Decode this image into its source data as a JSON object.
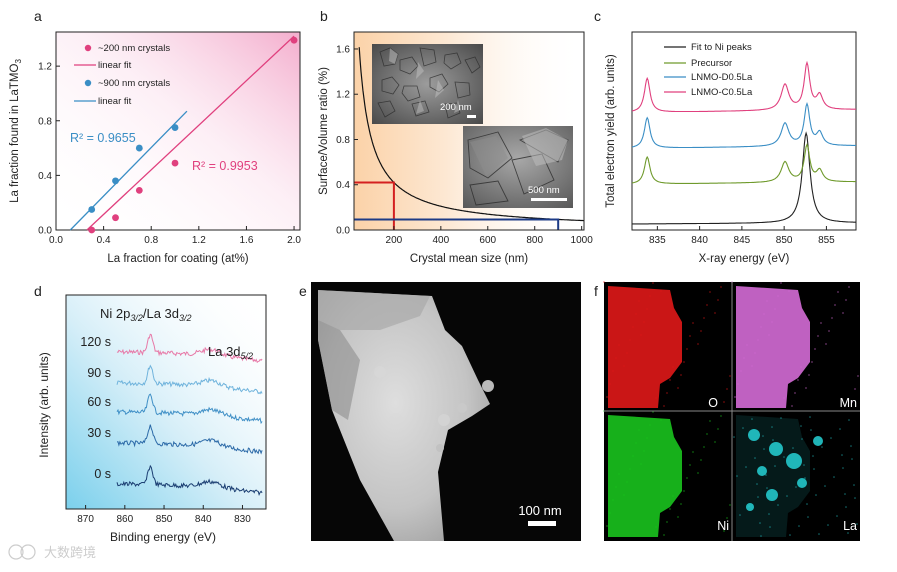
{
  "panels": {
    "a": {
      "letter": "a"
    },
    "b": {
      "letter": "b"
    },
    "c": {
      "letter": "c"
    },
    "d": {
      "letter": "d"
    },
    "e": {
      "letter": "e"
    },
    "f": {
      "letter": "f"
    }
  },
  "colors": {
    "pink": "#e0407e",
    "blue": "#3a8ec5",
    "navy": "#1d3b86",
    "red": "#d42020",
    "green": "#6f9a2c"
  },
  "chart_data": [
    {
      "panel": "a",
      "type": "scatter",
      "title": "",
      "xlabel": "La fraction for coating (at%)",
      "ylabel_prefix": "La fraction found in LaTMO",
      "ylabel_sub": "3",
      "xlim": [
        0,
        2.05
      ],
      "ylim": [
        0,
        1.45
      ],
      "xticks": [
        0.0,
        0.4,
        0.8,
        1.2,
        1.6,
        2.0
      ],
      "xtick_labels": [
        "0.0",
        "0.4",
        "0.8",
        "1.2",
        "1.6",
        "2.0"
      ],
      "yticks": [
        0.0,
        0.4,
        0.8,
        1.2
      ],
      "ytick_labels": [
        "0.0",
        "0.4",
        "0.8",
        "1.2"
      ],
      "series": [
        {
          "name": "~200 nm crystals",
          "color": "#e0407e",
          "x": [
            0.3,
            0.5,
            0.7,
            1.0,
            2.0
          ],
          "y": [
            0.0,
            0.09,
            0.29,
            0.49,
            1.39
          ],
          "fit_name": "linear fit",
          "fit": [
            [
              0.26,
              0.0
            ],
            [
              2.0,
              1.42
            ]
          ],
          "r2": "R² = 0.9953"
        },
        {
          "name": "~900 nm crystals",
          "color": "#3a8ec5",
          "x": [
            0.3,
            0.5,
            0.7,
            1.0
          ],
          "y": [
            0.15,
            0.36,
            0.6,
            0.75
          ],
          "fit_name": "linear fit",
          "fit": [
            [
              0.12,
              0.0
            ],
            [
              1.1,
              0.87
            ]
          ],
          "r2": "R² = 0.9655"
        }
      ]
    },
    {
      "panel": "b",
      "type": "line",
      "xlabel": "Crystal mean size (nm)",
      "ylabel": "Surface/Volume ratio (%)",
      "xlim": [
        30,
        1010
      ],
      "ylim": [
        0,
        1.75
      ],
      "xticks": [
        200,
        400,
        600,
        800,
        1000
      ],
      "yticks": [
        0.0,
        0.4,
        0.8,
        1.2,
        1.6
      ],
      "ytick_labels": [
        "0.0",
        "0.4",
        "0.8",
        "1.2",
        "1.6"
      ],
      "curve_constant": 84,
      "markers": [
        {
          "name": "200 nm",
          "x": 200,
          "y": 0.42,
          "color": "#d42020"
        },
        {
          "name": "900 nm",
          "x": 900,
          "y": 0.093,
          "color": "#1d3b86"
        }
      ],
      "insets": [
        {
          "scale_label": "200 nm"
        },
        {
          "scale_label": "500 nm"
        }
      ]
    },
    {
      "panel": "c",
      "type": "line",
      "xlabel": "X-ray energy (eV)",
      "ylabel": "Total electron yield (arb. units)",
      "xlim": [
        832,
        858.5
      ],
      "xticks": [
        835,
        840,
        845,
        850,
        855
      ],
      "series": [
        {
          "name": "Fit to Ni peaks",
          "color": "#222222",
          "offset": 0.0
        },
        {
          "name": "Precursor",
          "color": "#6f9a2c",
          "offset": 0.18
        },
        {
          "name": "LNMO-D0.5La",
          "color": "#3a8ec5",
          "offset": 0.36
        },
        {
          "name": "LNMO-C0.5La",
          "color": "#e0407e",
          "offset": 0.54
        }
      ]
    },
    {
      "panel": "d",
      "type": "line",
      "xlabel": "Binding energy (eV)",
      "ylabel": "Intensity (arb. units)",
      "xlim": [
        875,
        824
      ],
      "xticks": [
        870,
        860,
        850,
        840,
        830
      ],
      "annotations": {
        "ni_main": "Ni 2p",
        "ni_sub": "3/2",
        "slash": "/La 3d",
        "la_sub": "3/2",
        "la_right": "La 3d",
        "la_right_sub": "5/2"
      },
      "series": [
        {
          "name": "120 s",
          "color": "#e77aa8"
        },
        {
          "name": "90 s",
          "color": "#6fb3dc"
        },
        {
          "name": "60 s",
          "color": "#3f8fc6"
        },
        {
          "name": "30 s",
          "color": "#2c6aa8"
        },
        {
          "name": "0 s",
          "color": "#1b3e72"
        }
      ]
    }
  ],
  "stem": {
    "scale_label": "100 nm"
  },
  "maps": [
    {
      "label": "O",
      "color": "#e01818"
    },
    {
      "label": "Mn",
      "color": "#d46cd6"
    },
    {
      "label": "Ni",
      "color": "#19c31e"
    },
    {
      "label": "La",
      "color": "#26d2d6"
    }
  ],
  "watermark": "大数跨境"
}
